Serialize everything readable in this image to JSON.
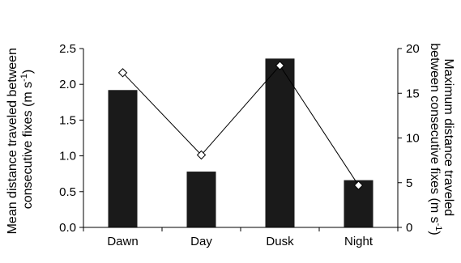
{
  "chart_data": {
    "type": "bar",
    "categories": [
      "Dawn",
      "Day",
      "Dusk",
      "Night"
    ],
    "series": [
      {
        "type": "bar",
        "axis": "left",
        "values": [
          1.92,
          0.78,
          2.36,
          0.66
        ],
        "color": "#1a1a1a"
      },
      {
        "type": "line",
        "axis": "right",
        "values": [
          17.3,
          8.1,
          18.1,
          4.7
        ],
        "color": "#000000",
        "marker": "diamond",
        "marker_fill": [
          "#ffffff",
          "#ffffff",
          "#ffffff",
          "#ffffff"
        ]
      }
    ],
    "ylabel_left_line1": "Mean distance traveled between",
    "ylabel_left_line2": "consecutive fixes (m s",
    "ylabel_left_sup": "-1",
    "ylabel_left_end": ")",
    "ylabel_right_line1": "Maximum distance traveled",
    "ylabel_right_line2": "between consecutive fixes (m s",
    "ylabel_right_sup": "-1",
    "ylabel_right_end": ")",
    "ylim_left": [
      0,
      2.5
    ],
    "yticks_left": [
      "0.0",
      "0.5",
      "1.0",
      "1.5",
      "2.0",
      "2.5"
    ],
    "ylim_right": [
      0,
      20
    ],
    "yticks_right": [
      "0",
      "5",
      "10",
      "15",
      "20"
    ],
    "grid": false,
    "legend": "none"
  }
}
